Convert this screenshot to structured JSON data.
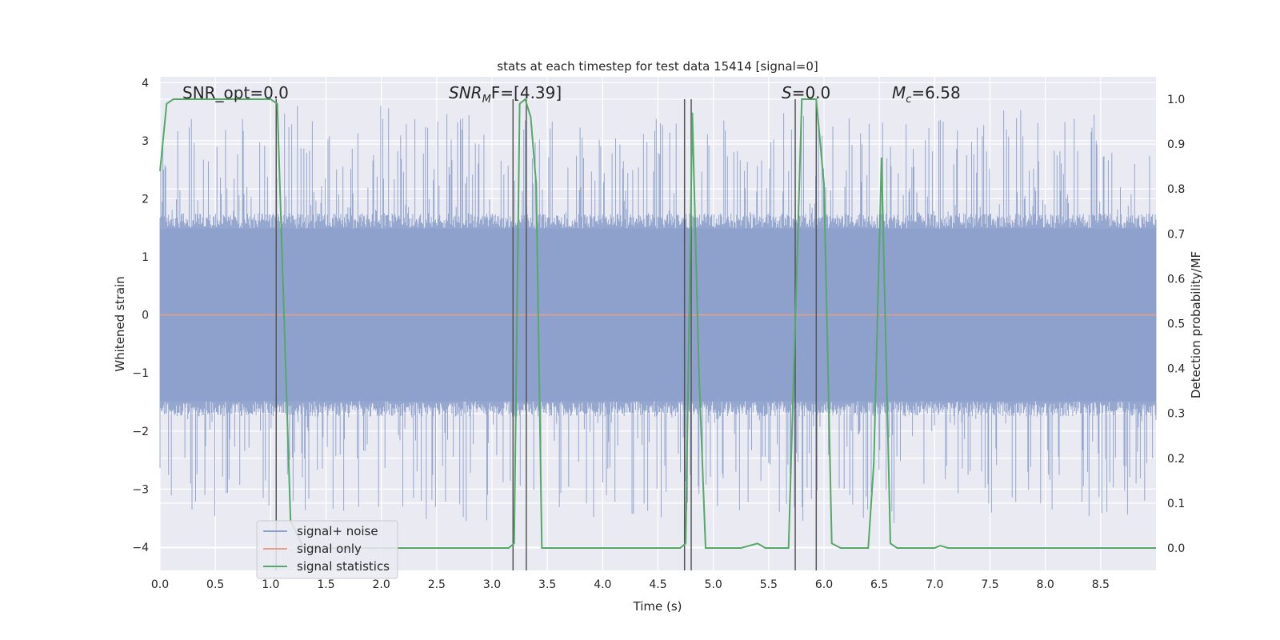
{
  "chart_data": {
    "type": "line",
    "title": "stats at each timestep for test data 15414 [signal=0]",
    "xlabel": "Time (s)",
    "ylabel": "Whitened strain",
    "y2label": "Detection probability/MF",
    "xlim": [
      0.0,
      9.0
    ],
    "ylim": [
      -4.4,
      4.1
    ],
    "y2lim": [
      -0.05,
      1.05
    ],
    "xticks": [
      "0.0",
      "0.5",
      "1.0",
      "1.5",
      "2.0",
      "2.5",
      "3.0",
      "3.5",
      "4.0",
      "4.5",
      "5.0",
      "5.5",
      "6.0",
      "6.5",
      "7.0",
      "7.5",
      "8.0",
      "8.5"
    ],
    "yticks": [
      "−4",
      "−3",
      "−2",
      "−1",
      "0",
      "1",
      "2",
      "3",
      "4"
    ],
    "y2ticks": [
      "0.0",
      "0.1",
      "0.2",
      "0.3",
      "0.4",
      "0.5",
      "0.6",
      "0.7",
      "0.8",
      "0.9",
      "1.0"
    ],
    "grid": true,
    "legend_position": "lower-left",
    "annotations": {
      "snr_opt": "SNR_opt=0.0",
      "snr_mf_base": "SNR",
      "snr_mf_sub": "M",
      "snr_mf_rest": "F=[4.39]",
      "s_label": "S",
      "s_value": "=0.0",
      "mc_base": "M",
      "mc_sub": "c",
      "mc_value": "=6.58"
    },
    "series": [
      {
        "name": "signal+ noise",
        "color": "#8da0cb",
        "description": "noise strain, approx range -3.6 to 3.7",
        "envelope_abs": 1.75
      },
      {
        "name": "signal only",
        "color": "#e8a084",
        "x": [
          0.0,
          9.0
        ],
        "values": [
          0.0,
          0.0
        ]
      },
      {
        "name": "signal statistics",
        "color": "#55a868",
        "axis": "right",
        "x": [
          0.0,
          0.06,
          0.12,
          0.5,
          1.0,
          1.06,
          1.18,
          1.3,
          2.0,
          3.0,
          3.15,
          3.2,
          3.25,
          3.3,
          3.35,
          3.4,
          3.45,
          4.0,
          4.7,
          4.75,
          4.81,
          4.87,
          4.93,
          5.0,
          5.25,
          5.4,
          5.47,
          5.6,
          5.68,
          5.8,
          5.93,
          6.0,
          6.07,
          6.15,
          6.4,
          6.45,
          6.52,
          6.6,
          6.66,
          6.75,
          7.0,
          7.05,
          7.12,
          7.5,
          9.0
        ],
        "values": [
          0.84,
          0.99,
          1.0,
          1.0,
          1.0,
          0.99,
          0.06,
          0.0,
          0.0,
          0.0,
          0.0,
          0.01,
          0.99,
          1.0,
          0.96,
          0.81,
          0.0,
          0.0,
          0.0,
          0.01,
          0.97,
          0.39,
          0.0,
          0.0,
          0.0,
          0.01,
          0.0,
          0.0,
          0.0,
          1.0,
          1.0,
          0.81,
          0.01,
          0.0,
          0.0,
          0.19,
          0.87,
          0.01,
          0.0,
          0.0,
          0.0,
          0.005,
          0.0,
          0.0,
          0.0
        ]
      }
    ],
    "vlines": [
      1.05,
      3.19,
      3.31,
      4.74,
      4.8,
      5.74,
      5.93
    ],
    "vline_color": "#555555"
  }
}
